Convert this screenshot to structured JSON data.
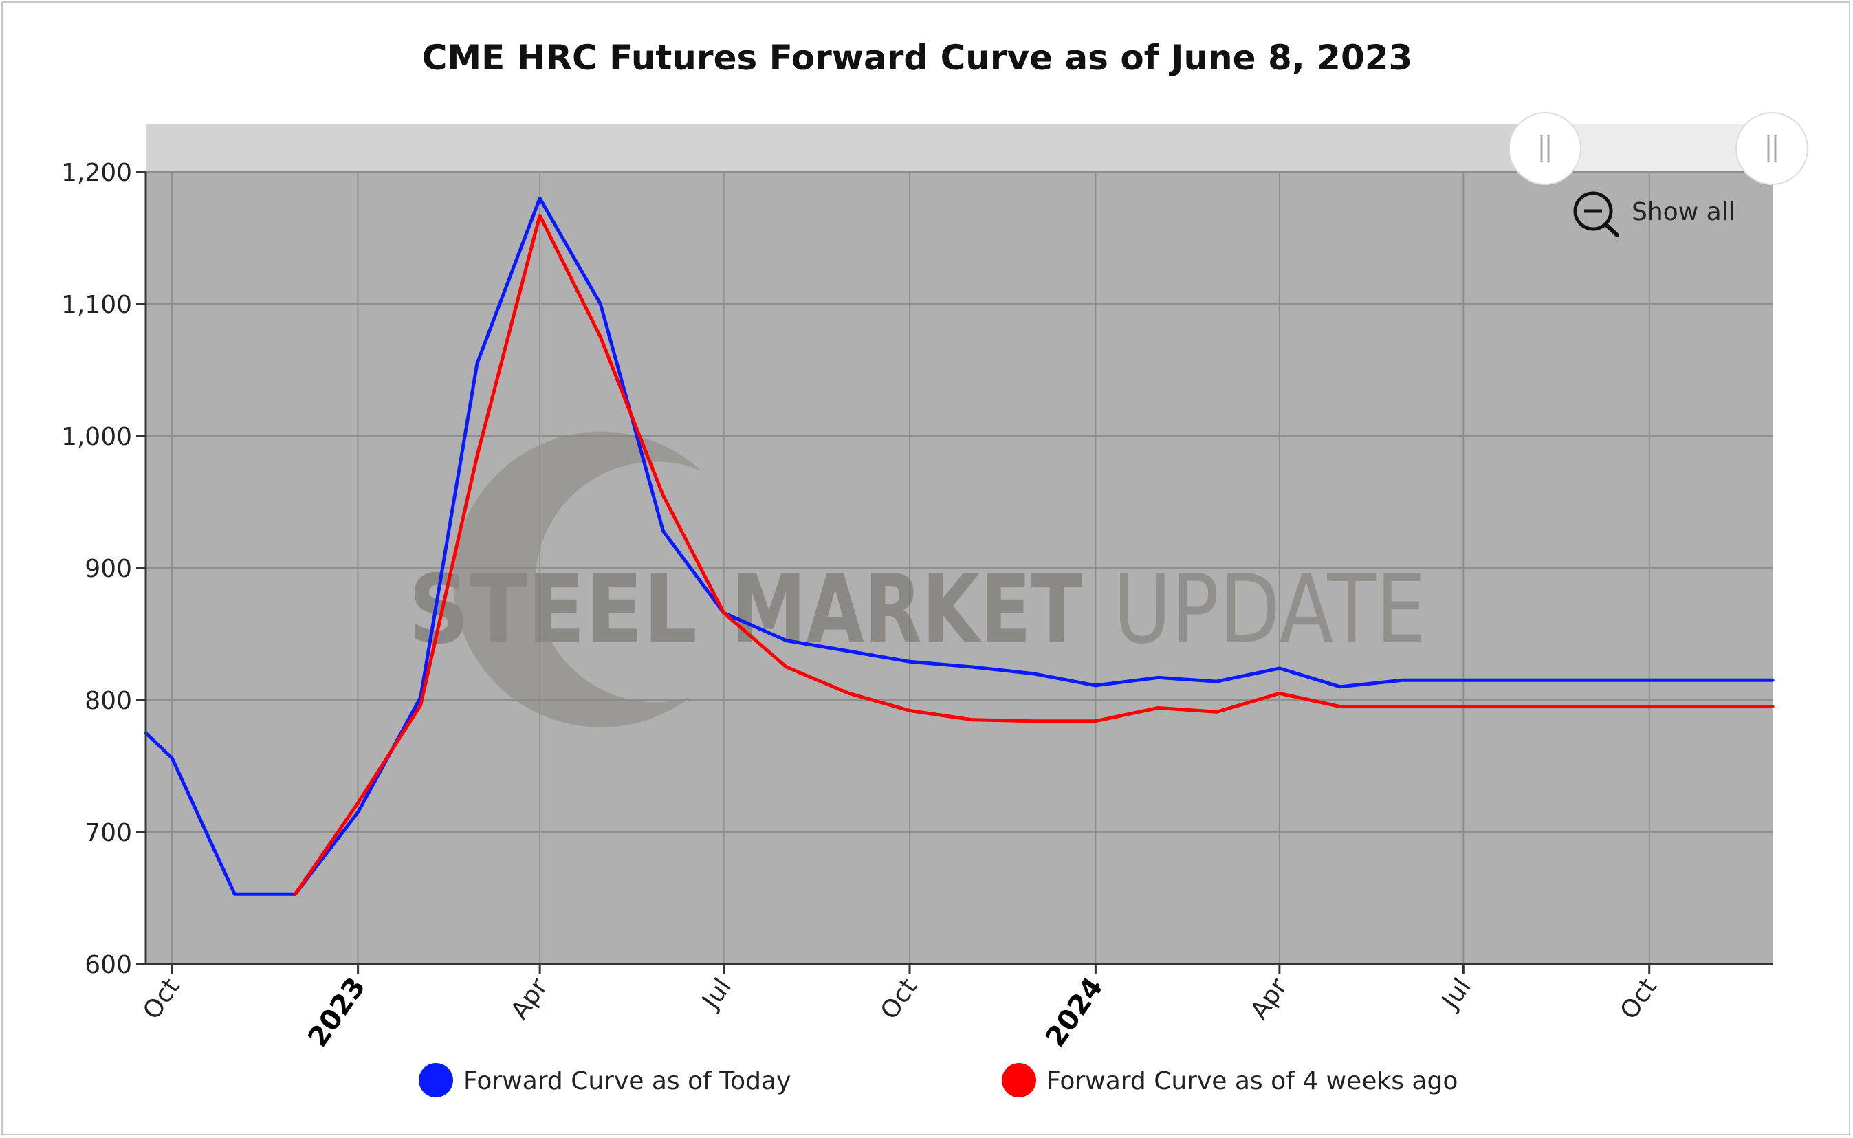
{
  "chart_data": {
    "type": "line",
    "title": "CME HRC Futures Forward Curve as of June 8, 2023",
    "xlabel": "",
    "ylabel": "",
    "ylim": [
      600,
      1200
    ],
    "y_ticks": [
      600,
      700,
      800,
      900,
      1000,
      1100,
      1200
    ],
    "y_tick_labels": [
      "600",
      "700",
      "800",
      "900",
      "1,000",
      "1,100",
      "1,200"
    ],
    "x_range": [
      "2022-09-18",
      "2024-12-01"
    ],
    "x_ticks": [
      {
        "date": "2022-10-01",
        "label": "Oct",
        "bold": false
      },
      {
        "date": "2023-01-01",
        "label": "2023",
        "bold": true
      },
      {
        "date": "2023-04-01",
        "label": "Apr",
        "bold": false
      },
      {
        "date": "2023-07-01",
        "label": "Jul",
        "bold": false
      },
      {
        "date": "2023-10-01",
        "label": "Oct",
        "bold": false
      },
      {
        "date": "2024-01-01",
        "label": "2024",
        "bold": true
      },
      {
        "date": "2024-04-01",
        "label": "Apr",
        "bold": false
      },
      {
        "date": "2024-07-01",
        "label": "Jul",
        "bold": false
      },
      {
        "date": "2024-10-01",
        "label": "Oct",
        "bold": false
      }
    ],
    "grid": true,
    "legend_position": "bottom",
    "series": [
      {
        "name": "Forward Curve as of Today",
        "color": "#0a1aff",
        "points": [
          [
            "2022-09-18",
            775
          ],
          [
            "2022-10-01",
            756
          ],
          [
            "2022-11-01",
            653
          ],
          [
            "2022-12-01",
            653
          ],
          [
            "2023-01-01",
            715
          ],
          [
            "2023-02-01",
            802
          ],
          [
            "2023-03-01",
            1055
          ],
          [
            "2023-04-01",
            1180
          ],
          [
            "2023-05-01",
            1100
          ],
          [
            "2023-06-01",
            928
          ],
          [
            "2023-07-01",
            866
          ],
          [
            "2023-08-01",
            845
          ],
          [
            "2023-09-01",
            837
          ],
          [
            "2023-10-01",
            829
          ],
          [
            "2023-11-01",
            825
          ],
          [
            "2023-12-01",
            820
          ],
          [
            "2024-01-01",
            811
          ],
          [
            "2024-02-01",
            817
          ],
          [
            "2024-03-01",
            814
          ],
          [
            "2024-04-01",
            824
          ],
          [
            "2024-05-01",
            810
          ],
          [
            "2024-06-01",
            815
          ],
          [
            "2024-07-01",
            815
          ],
          [
            "2024-08-01",
            815
          ],
          [
            "2024-09-01",
            815
          ],
          [
            "2024-10-01",
            815
          ],
          [
            "2024-11-01",
            815
          ],
          [
            "2024-12-01",
            815
          ]
        ]
      },
      {
        "name": "Forward Curve as of 4 weeks ago",
        "color": "#ff0000",
        "points": [
          [
            "2022-12-01",
            653
          ],
          [
            "2023-01-01",
            722
          ],
          [
            "2023-02-01",
            796
          ],
          [
            "2023-03-01",
            985
          ],
          [
            "2023-04-01",
            1167
          ],
          [
            "2023-05-01",
            1075
          ],
          [
            "2023-06-01",
            955
          ],
          [
            "2023-07-01",
            866
          ],
          [
            "2023-08-01",
            825
          ],
          [
            "2023-09-01",
            805
          ],
          [
            "2023-10-01",
            792
          ],
          [
            "2023-11-01",
            785
          ],
          [
            "2023-12-01",
            784
          ],
          [
            "2024-01-01",
            784
          ],
          [
            "2024-02-01",
            794
          ],
          [
            "2024-03-01",
            791
          ],
          [
            "2024-04-01",
            805
          ],
          [
            "2024-05-01",
            795
          ],
          [
            "2024-06-01",
            795
          ],
          [
            "2024-07-01",
            795
          ],
          [
            "2024-08-01",
            795
          ],
          [
            "2024-09-01",
            795
          ],
          [
            "2024-10-01",
            795
          ],
          [
            "2024-11-01",
            795
          ],
          [
            "2024-12-01",
            795
          ]
        ]
      }
    ]
  },
  "zoom_control": {
    "label": "Show all"
  },
  "watermark": {
    "word1": "STEEL",
    "word2": "MARKET",
    "word3": "UPDATE"
  },
  "colors": {
    "plot_background": "#b0b0b0",
    "scrollbar_track": "#d3d3d3",
    "gridline": "#8e8e8e"
  }
}
